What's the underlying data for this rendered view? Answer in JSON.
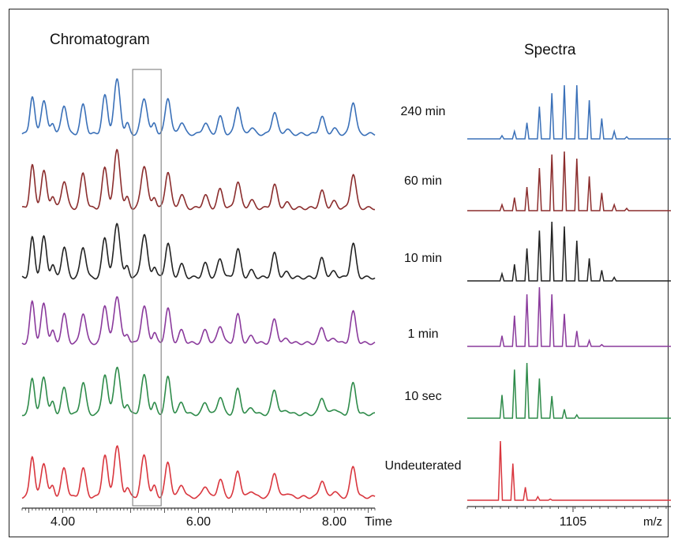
{
  "chart_data": [
    {
      "type": "line",
      "title": "Chromatogram",
      "xlabel": "Time",
      "xlim": [
        3.4,
        8.6
      ],
      "x_ticks": [
        {
          "value": 4.0,
          "label": "4.00"
        },
        {
          "value": 6.0,
          "label": "6.00"
        },
        {
          "value": 8.0,
          "label": "8.00"
        }
      ],
      "highlight_window": [
        5.03,
        5.45
      ],
      "peaks": [
        {
          "x": 3.55,
          "h": 0.7,
          "w": 0.035
        },
        {
          "x": 3.72,
          "h": 0.66,
          "w": 0.04
        },
        {
          "x": 3.85,
          "h": 0.2,
          "w": 0.03
        },
        {
          "x": 4.02,
          "h": 0.5,
          "w": 0.04
        },
        {
          "x": 4.3,
          "h": 0.55,
          "w": 0.04
        },
        {
          "x": 4.62,
          "h": 0.72,
          "w": 0.04
        },
        {
          "x": 4.8,
          "h": 0.92,
          "w": 0.045
        },
        {
          "x": 4.95,
          "h": 0.18,
          "w": 0.03
        },
        {
          "x": 5.2,
          "h": 0.7,
          "w": 0.045
        },
        {
          "x": 5.35,
          "h": 0.2,
          "w": 0.03
        },
        {
          "x": 5.55,
          "h": 0.62,
          "w": 0.04
        },
        {
          "x": 5.75,
          "h": 0.22,
          "w": 0.04
        },
        {
          "x": 6.1,
          "h": 0.22,
          "w": 0.04
        },
        {
          "x": 6.32,
          "h": 0.3,
          "w": 0.04
        },
        {
          "x": 6.58,
          "h": 0.48,
          "w": 0.04
        },
        {
          "x": 6.78,
          "h": 0.12,
          "w": 0.04
        },
        {
          "x": 7.12,
          "h": 0.42,
          "w": 0.04
        },
        {
          "x": 7.3,
          "h": 0.08,
          "w": 0.04
        },
        {
          "x": 7.82,
          "h": 0.3,
          "w": 0.04
        },
        {
          "x": 8.0,
          "h": 0.1,
          "w": 0.04
        },
        {
          "x": 8.28,
          "h": 0.6,
          "w": 0.04
        }
      ],
      "series": [
        {
          "name": "240 min",
          "color": "#3a70b8"
        },
        {
          "name": "60 min",
          "color": "#8b2d2d"
        },
        {
          "name": "10 min",
          "color": "#222222"
        },
        {
          "name": "1 min",
          "color": "#8a3a9c"
        },
        {
          "name": "10 sec",
          "color": "#2e8b4a"
        },
        {
          "name": "Undeuterated",
          "color": "#d9363e"
        }
      ]
    },
    {
      "type": "bar",
      "title": "Spectra",
      "xlabel": "m/z",
      "x_ticks": [
        {
          "value": 1105,
          "label": "1105"
        }
      ],
      "series": [
        {
          "name": "240 min",
          "color": "#3a70b8",
          "values": [
            0.06,
            0.14,
            0.3,
            0.6,
            0.85,
            1.0,
            1.0,
            0.72,
            0.38,
            0.14,
            0.04
          ]
        },
        {
          "name": "60 min",
          "color": "#8b2d2d",
          "values": [
            0.1,
            0.22,
            0.4,
            0.72,
            0.95,
            1.0,
            0.88,
            0.58,
            0.3,
            0.1,
            0.04
          ]
        },
        {
          "name": "10 min",
          "color": "#222222",
          "values": [
            0.12,
            0.28,
            0.55,
            0.85,
            1.0,
            0.92,
            0.68,
            0.38,
            0.18,
            0.06
          ]
        },
        {
          "name": "1 min",
          "color": "#8a3a9c",
          "values": [
            0.18,
            0.52,
            0.88,
            1.0,
            0.88,
            0.55,
            0.26,
            0.1,
            0.03
          ]
        },
        {
          "name": "10 sec",
          "color": "#2e8b4a",
          "values": [
            0.42,
            0.88,
            1.0,
            0.72,
            0.4,
            0.16,
            0.06
          ]
        },
        {
          "name": "Undeuterated",
          "color": "#d9363e",
          "values": [
            1.0,
            0.62,
            0.22,
            0.06,
            0.02
          ]
        }
      ]
    }
  ]
}
